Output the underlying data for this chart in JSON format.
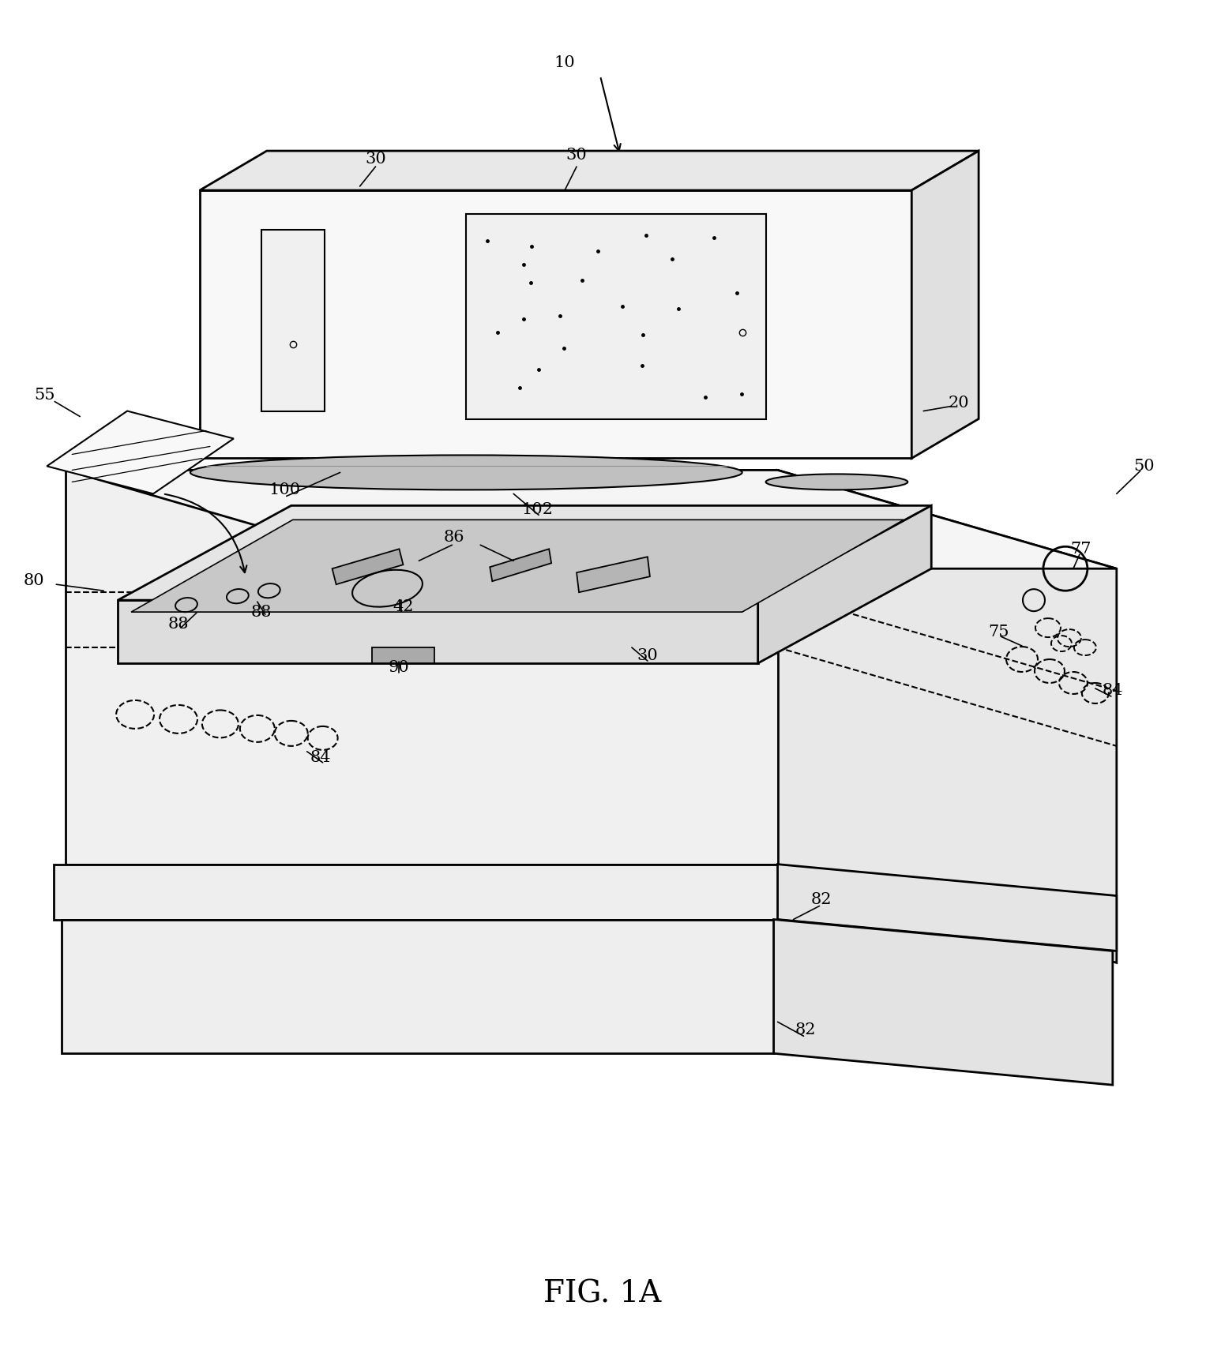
{
  "fig_width": 15.27,
  "fig_height": 17.2,
  "background_color": "#ffffff",
  "line_color": "#000000",
  "fig_label": "FIG. 1A"
}
